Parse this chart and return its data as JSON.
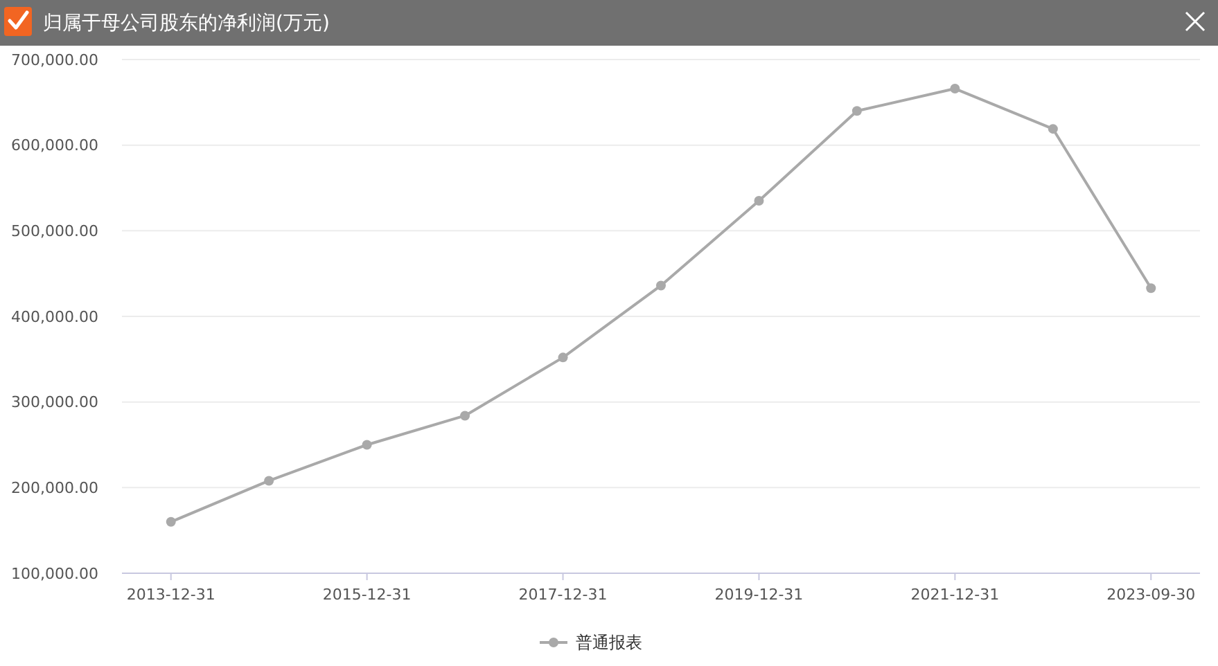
{
  "chart_data": {
    "type": "line",
    "title": "归属于母公司股东的净利润(万元)",
    "categories": [
      "2013-12-31",
      null,
      "2015-12-31",
      null,
      "2017-12-31",
      null,
      "2019-12-31",
      null,
      "2021-12-31",
      null,
      "2023-09-30"
    ],
    "series": [
      {
        "name": "普通报表",
        "color": "#a9a9a9",
        "values": [
          160000,
          208000,
          250000,
          284000,
          352000,
          436000,
          535000,
          640000,
          666000,
          619000,
          433000
        ]
      }
    ],
    "ylim": [
      100000,
      700000
    ],
    "yticks": [
      {
        "value": 100000,
        "label": "100,000.00"
      },
      {
        "value": 200000,
        "label": "200,000.00"
      },
      {
        "value": 300000,
        "label": "300,000.00"
      },
      {
        "value": 400000,
        "label": "400,000.00"
      },
      {
        "value": 500000,
        "label": "500,000.00"
      },
      {
        "value": 600000,
        "label": "600,000.00"
      },
      {
        "value": 700000,
        "label": "700,000.00"
      }
    ],
    "grid": "y",
    "legend": "bottom",
    "marker": "circle",
    "line_style": "solid"
  }
}
